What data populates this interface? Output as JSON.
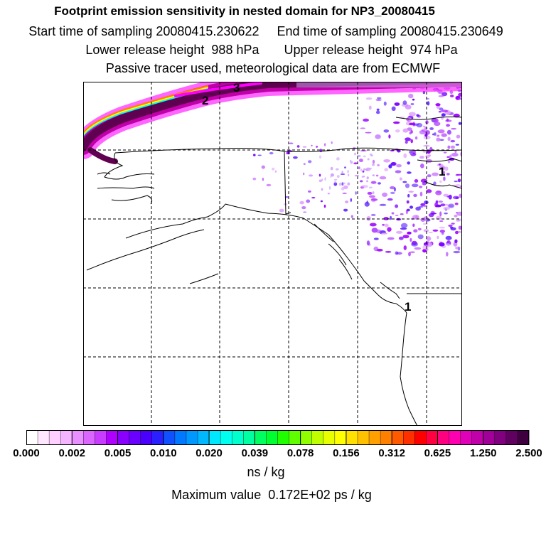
{
  "header": {
    "title": "Footprint emission sensitivity in nested domain for NP3_20080415",
    "sampling_line": "Start time of sampling 20080415.230622     End time of sampling 20080415.230649",
    "release_line": "Lower release height  988 hPa       Upper release height  974 hPa",
    "tracer_line": "Passive tracer used, meteorological data are from ECMWF"
  },
  "map": {
    "contour_labels": [
      "1",
      "2",
      "3"
    ],
    "plume_colors": [
      "#ff00ff",
      "#d000c0",
      "#7a0050",
      "#3a0030",
      "#00ffff",
      "#ffff00",
      "#ff8000"
    ],
    "speckle_color": "#9a00ff"
  },
  "colorbar": {
    "colors": [
      "#ffffff",
      "#ffe8ff",
      "#ffd0ff",
      "#f4b4ff",
      "#e890ff",
      "#da66ff",
      "#c83cff",
      "#b000ff",
      "#8a00ff",
      "#6a00ff",
      "#4a00ff",
      "#2a20ff",
      "#1050ff",
      "#0078ff",
      "#0098ff",
      "#00b8ff",
      "#00e8ff",
      "#00ffee",
      "#00ffcc",
      "#00ffa0",
      "#00ff60",
      "#00ff30",
      "#20ff00",
      "#60ff00",
      "#90ff00",
      "#c0ff00",
      "#e8ff00",
      "#ffff00",
      "#ffe000",
      "#ffc000",
      "#ffa000",
      "#ff8000",
      "#ff5a00",
      "#ff3000",
      "#ff0000",
      "#ff0040",
      "#ff0080",
      "#ff00b0",
      "#e000b8",
      "#c000a8",
      "#a00098",
      "#800080",
      "#600060",
      "#400040"
    ],
    "tick_labels": [
      "0.000",
      "0.002",
      "0.005",
      "0.010",
      "0.020",
      "0.039",
      "0.078",
      "0.156",
      "0.312",
      "0.625",
      "1.250",
      "2.500"
    ],
    "units": "ns / kg",
    "max_value": "Maximum value  0.172E+02 ps / kg"
  }
}
